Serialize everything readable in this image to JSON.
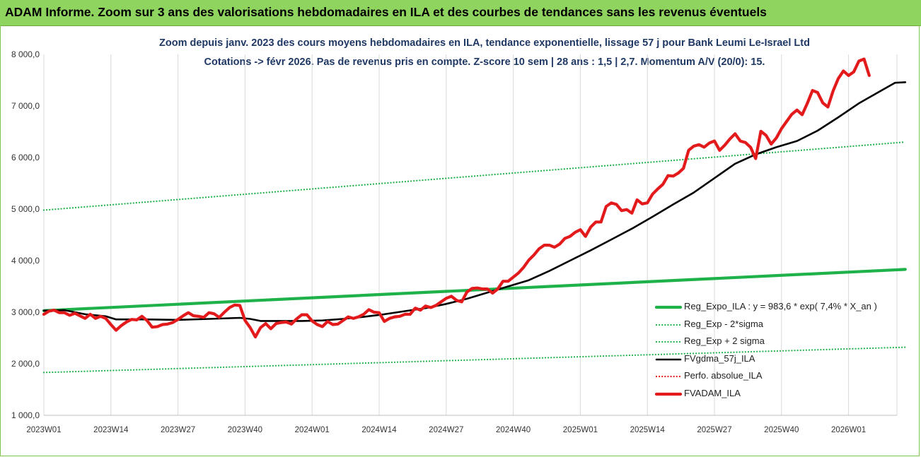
{
  "banner": {
    "title": "ADAM Informe. Zoom sur 3 ans des valorisations hebdomadaires en ILA et des courbes de tendances sans les revenus éventuels"
  },
  "chart_data": {
    "type": "line",
    "title_line1": "Zoom depuis janv. 2023 des cours moyens hebdomadaires en ILA, tendance exponentielle, lissage 57 j pour Bank Leumi Le-Israel Ltd",
    "title_line2": "Cotations -> févr 2026. Pas de revenus pris en compte. Z-score 10 sem | 28 ans : 1,5 | 2,7. Momentum A/V (20/0): 15.",
    "xlabel": "",
    "ylabel": "",
    "ylim": [
      1000,
      8000
    ],
    "y_ticks": [
      "1 000,0",
      "2 000,0",
      "3 000,0",
      "4 000,0",
      "5 000,0",
      "6 000,0",
      "7 000,0",
      "8 000,0"
    ],
    "x_ticks": [
      "2023W01",
      "2023W14",
      "2023W27",
      "2023W40",
      "2024W01",
      "2024W14",
      "2024W27",
      "2024W40",
      "2025W01",
      "2025W14",
      "2025W27",
      "2025W40",
      "2026W01"
    ],
    "x_range_weeks": [
      0,
      167
    ],
    "grid": "vertical",
    "legend_position": "bottom-right",
    "series": [
      {
        "name": "Reg_Expo_ILA : y = 983,6 * exp( 7,4% *  X_an )",
        "color": "#1fb14a",
        "style": "solid-thick",
        "points": [
          [
            0,
            3030
          ],
          [
            167,
            3830
          ]
        ]
      },
      {
        "name": "Reg_Exp - 2*sigma",
        "color": "#1fb14a",
        "style": "dotted",
        "points": [
          [
            0,
            1830
          ],
          [
            167,
            2320
          ]
        ]
      },
      {
        "name": "Reg_Exp + 2 sigma",
        "color": "#1fb14a",
        "style": "dotted",
        "points": [
          [
            0,
            4980
          ],
          [
            167,
            6300
          ]
        ]
      },
      {
        "name": "FVgdma_57j_ILA",
        "color": "#000000",
        "style": "solid",
        "points": [
          [
            0,
            3030
          ],
          [
            4,
            3040
          ],
          [
            8,
            2960
          ],
          [
            12,
            2920
          ],
          [
            14,
            2860
          ],
          [
            20,
            2860
          ],
          [
            26,
            2850
          ],
          [
            32,
            2870
          ],
          [
            38,
            2890
          ],
          [
            40,
            2870
          ],
          [
            42,
            2830
          ],
          [
            46,
            2830
          ],
          [
            50,
            2830
          ],
          [
            54,
            2840
          ],
          [
            58,
            2870
          ],
          [
            62,
            2910
          ],
          [
            66,
            2960
          ],
          [
            70,
            3020
          ],
          [
            74,
            3080
          ],
          [
            78,
            3160
          ],
          [
            82,
            3260
          ],
          [
            86,
            3380
          ],
          [
            90,
            3500
          ],
          [
            94,
            3620
          ],
          [
            98,
            3800
          ],
          [
            102,
            4000
          ],
          [
            106,
            4200
          ],
          [
            110,
            4410
          ],
          [
            114,
            4620
          ],
          [
            118,
            4850
          ],
          [
            122,
            5090
          ],
          [
            126,
            5320
          ],
          [
            130,
            5600
          ],
          [
            134,
            5880
          ],
          [
            138,
            6060
          ],
          [
            142,
            6200
          ],
          [
            146,
            6320
          ],
          [
            150,
            6520
          ],
          [
            154,
            6780
          ],
          [
            158,
            7050
          ],
          [
            162,
            7280
          ],
          [
            165,
            7450
          ],
          [
            167,
            7460
          ]
        ]
      },
      {
        "name": "Perfo. absolue_ILA",
        "color": "#e31a1c",
        "style": "dotted",
        "points": []
      },
      {
        "name": "FVADAM_ILA",
        "color": "#e31a1c",
        "style": "solid-thick",
        "points": [
          [
            0,
            2960
          ],
          [
            1,
            3020
          ],
          [
            2,
            3040
          ],
          [
            3,
            2990
          ],
          [
            4,
            2990
          ],
          [
            5,
            2940
          ],
          [
            6,
            2980
          ],
          [
            7,
            2930
          ],
          [
            8,
            2880
          ],
          [
            9,
            2960
          ],
          [
            10,
            2880
          ],
          [
            11,
            2920
          ],
          [
            12,
            2880
          ],
          [
            13,
            2760
          ],
          [
            14,
            2650
          ],
          [
            15,
            2740
          ],
          [
            16,
            2810
          ],
          [
            17,
            2860
          ],
          [
            18,
            2850
          ],
          [
            19,
            2920
          ],
          [
            20,
            2840
          ],
          [
            21,
            2710
          ],
          [
            22,
            2720
          ],
          [
            23,
            2760
          ],
          [
            24,
            2770
          ],
          [
            25,
            2800
          ],
          [
            26,
            2860
          ],
          [
            27,
            2930
          ],
          [
            28,
            2990
          ],
          [
            29,
            2930
          ],
          [
            30,
            2920
          ],
          [
            31,
            2900
          ],
          [
            32,
            2990
          ],
          [
            33,
            2970
          ],
          [
            34,
            2900
          ],
          [
            35,
            3000
          ],
          [
            36,
            3090
          ],
          [
            37,
            3140
          ],
          [
            38,
            3130
          ],
          [
            39,
            2840
          ],
          [
            40,
            2700
          ],
          [
            41,
            2520
          ],
          [
            42,
            2700
          ],
          [
            43,
            2780
          ],
          [
            44,
            2680
          ],
          [
            45,
            2780
          ],
          [
            46,
            2800
          ],
          [
            47,
            2810
          ],
          [
            48,
            2770
          ],
          [
            49,
            2870
          ],
          [
            50,
            2950
          ],
          [
            51,
            2950
          ],
          [
            52,
            2830
          ],
          [
            53,
            2760
          ],
          [
            54,
            2720
          ],
          [
            55,
            2820
          ],
          [
            56,
            2760
          ],
          [
            57,
            2770
          ],
          [
            58,
            2840
          ],
          [
            59,
            2910
          ],
          [
            60,
            2880
          ],
          [
            61,
            2910
          ],
          [
            62,
            2960
          ],
          [
            63,
            3050
          ],
          [
            64,
            3000
          ],
          [
            65,
            2990
          ],
          [
            66,
            2820
          ],
          [
            67,
            2880
          ],
          [
            68,
            2910
          ],
          [
            69,
            2920
          ],
          [
            70,
            2960
          ],
          [
            71,
            2960
          ],
          [
            72,
            3080
          ],
          [
            73,
            3040
          ],
          [
            74,
            3120
          ],
          [
            75,
            3090
          ],
          [
            76,
            3130
          ],
          [
            77,
            3200
          ],
          [
            78,
            3270
          ],
          [
            79,
            3310
          ],
          [
            80,
            3230
          ],
          [
            81,
            3200
          ],
          [
            82,
            3390
          ],
          [
            83,
            3460
          ],
          [
            84,
            3470
          ],
          [
            85,
            3450
          ],
          [
            86,
            3450
          ],
          [
            87,
            3370
          ],
          [
            88,
            3450
          ],
          [
            89,
            3600
          ],
          [
            90,
            3600
          ],
          [
            91,
            3680
          ],
          [
            92,
            3760
          ],
          [
            93,
            3870
          ],
          [
            94,
            4010
          ],
          [
            95,
            4110
          ],
          [
            96,
            4230
          ],
          [
            97,
            4300
          ],
          [
            98,
            4300
          ],
          [
            99,
            4260
          ],
          [
            100,
            4320
          ],
          [
            101,
            4430
          ],
          [
            102,
            4470
          ],
          [
            103,
            4550
          ],
          [
            104,
            4600
          ],
          [
            105,
            4470
          ],
          [
            106,
            4650
          ],
          [
            107,
            4750
          ],
          [
            108,
            4750
          ],
          [
            109,
            5050
          ],
          [
            110,
            5120
          ],
          [
            111,
            5090
          ],
          [
            112,
            4970
          ],
          [
            113,
            4990
          ],
          [
            114,
            4920
          ],
          [
            115,
            5180
          ],
          [
            116,
            5100
          ],
          [
            117,
            5120
          ],
          [
            118,
            5290
          ],
          [
            119,
            5390
          ],
          [
            120,
            5480
          ],
          [
            121,
            5650
          ],
          [
            122,
            5640
          ],
          [
            123,
            5700
          ],
          [
            124,
            5790
          ],
          [
            125,
            6140
          ],
          [
            126,
            6220
          ],
          [
            127,
            6250
          ],
          [
            128,
            6200
          ],
          [
            129,
            6280
          ],
          [
            130,
            6320
          ],
          [
            131,
            6140
          ],
          [
            132,
            6240
          ],
          [
            133,
            6360
          ],
          [
            134,
            6460
          ],
          [
            135,
            6320
          ],
          [
            136,
            6290
          ],
          [
            137,
            6200
          ],
          [
            138,
            5980
          ],
          [
            139,
            6510
          ],
          [
            140,
            6430
          ],
          [
            141,
            6260
          ],
          [
            142,
            6380
          ],
          [
            143,
            6560
          ],
          [
            144,
            6700
          ],
          [
            145,
            6840
          ],
          [
            146,
            6920
          ],
          [
            147,
            6830
          ],
          [
            148,
            7050
          ],
          [
            149,
            7300
          ],
          [
            150,
            7260
          ],
          [
            151,
            7060
          ],
          [
            152,
            6980
          ],
          [
            153,
            7290
          ],
          [
            154,
            7530
          ],
          [
            155,
            7680
          ],
          [
            156,
            7590
          ],
          [
            157,
            7660
          ],
          [
            158,
            7870
          ],
          [
            159,
            7910
          ],
          [
            160,
            7590
          ]
        ]
      }
    ]
  }
}
